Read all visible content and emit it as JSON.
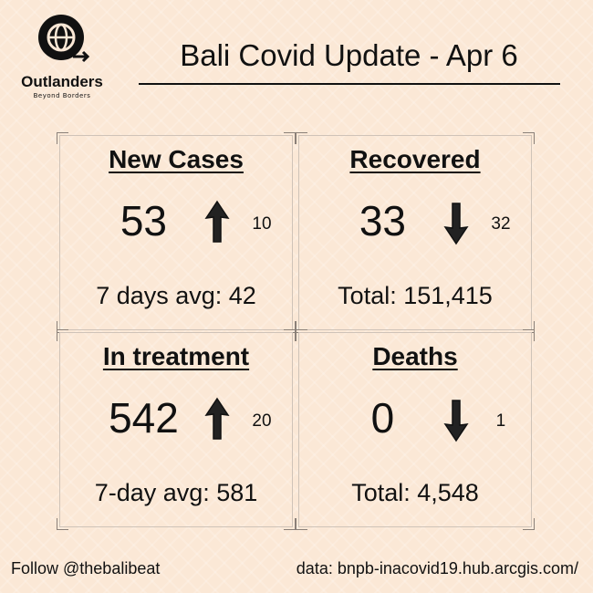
{
  "logo": {
    "name": "Outlanders",
    "tagline": "Beyond Borders"
  },
  "header": {
    "title": "Bali Covid Update - Apr 6"
  },
  "cards": [
    {
      "title": "New Cases",
      "value": 53,
      "change": 10,
      "direction": "up",
      "footer": "7 days avg: 42"
    },
    {
      "title": "Recovered",
      "value": 33,
      "change": 32,
      "direction": "down",
      "footer": "Total: 151,415"
    },
    {
      "title": "In treatment",
      "value": 542,
      "change": 20,
      "direction": "up",
      "footer": "7-day avg: 581"
    },
    {
      "title": "Deaths",
      "value": 0,
      "change": 1,
      "direction": "down",
      "footer": "Total: 4,548"
    }
  ],
  "footer": {
    "follow": "Follow @thebalibeat",
    "source": "data: bnpb-inacovid19.hub.arcgis.com/"
  }
}
